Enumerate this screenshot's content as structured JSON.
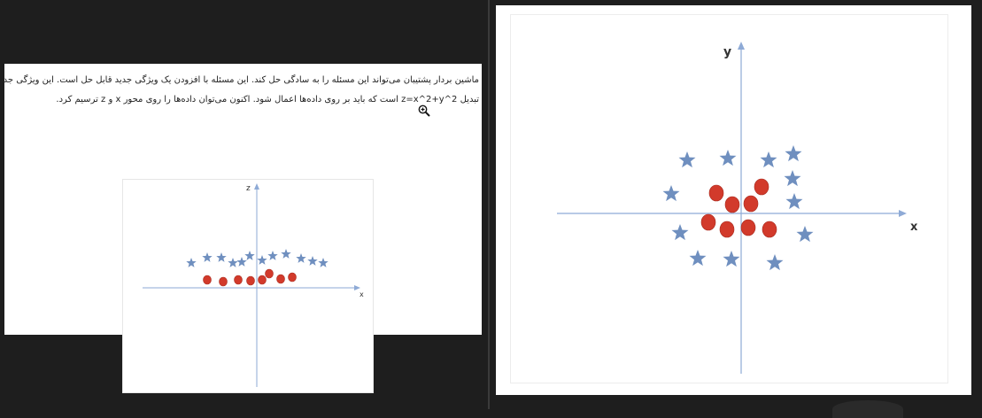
{
  "document": {
    "line1": "ماشین بردار پشتیبان می‌تواند این مسئله را به سادگی حل کند. این مسئله با افزودن یک ویژگی جدید قابل حل است. این ویژگی جدید",
    "line2": "تبدیل z=x^2+y^2 است که باید بر روی داده‌ها اعمال شود. اکنون می‌توان داده‌ها را روی محور x و z ترسیم کرد."
  },
  "figure_small": {
    "x_axis_label": "x",
    "y_axis_label": "z"
  },
  "figure_large": {
    "x_axis_label": "x",
    "y_axis_label": "y"
  },
  "colors": {
    "star": "#6f8fbf",
    "circle_fill": "#d23a2b",
    "axis": "#8eaad6"
  },
  "icons": {
    "cursor": "zoom-in-icon"
  }
}
